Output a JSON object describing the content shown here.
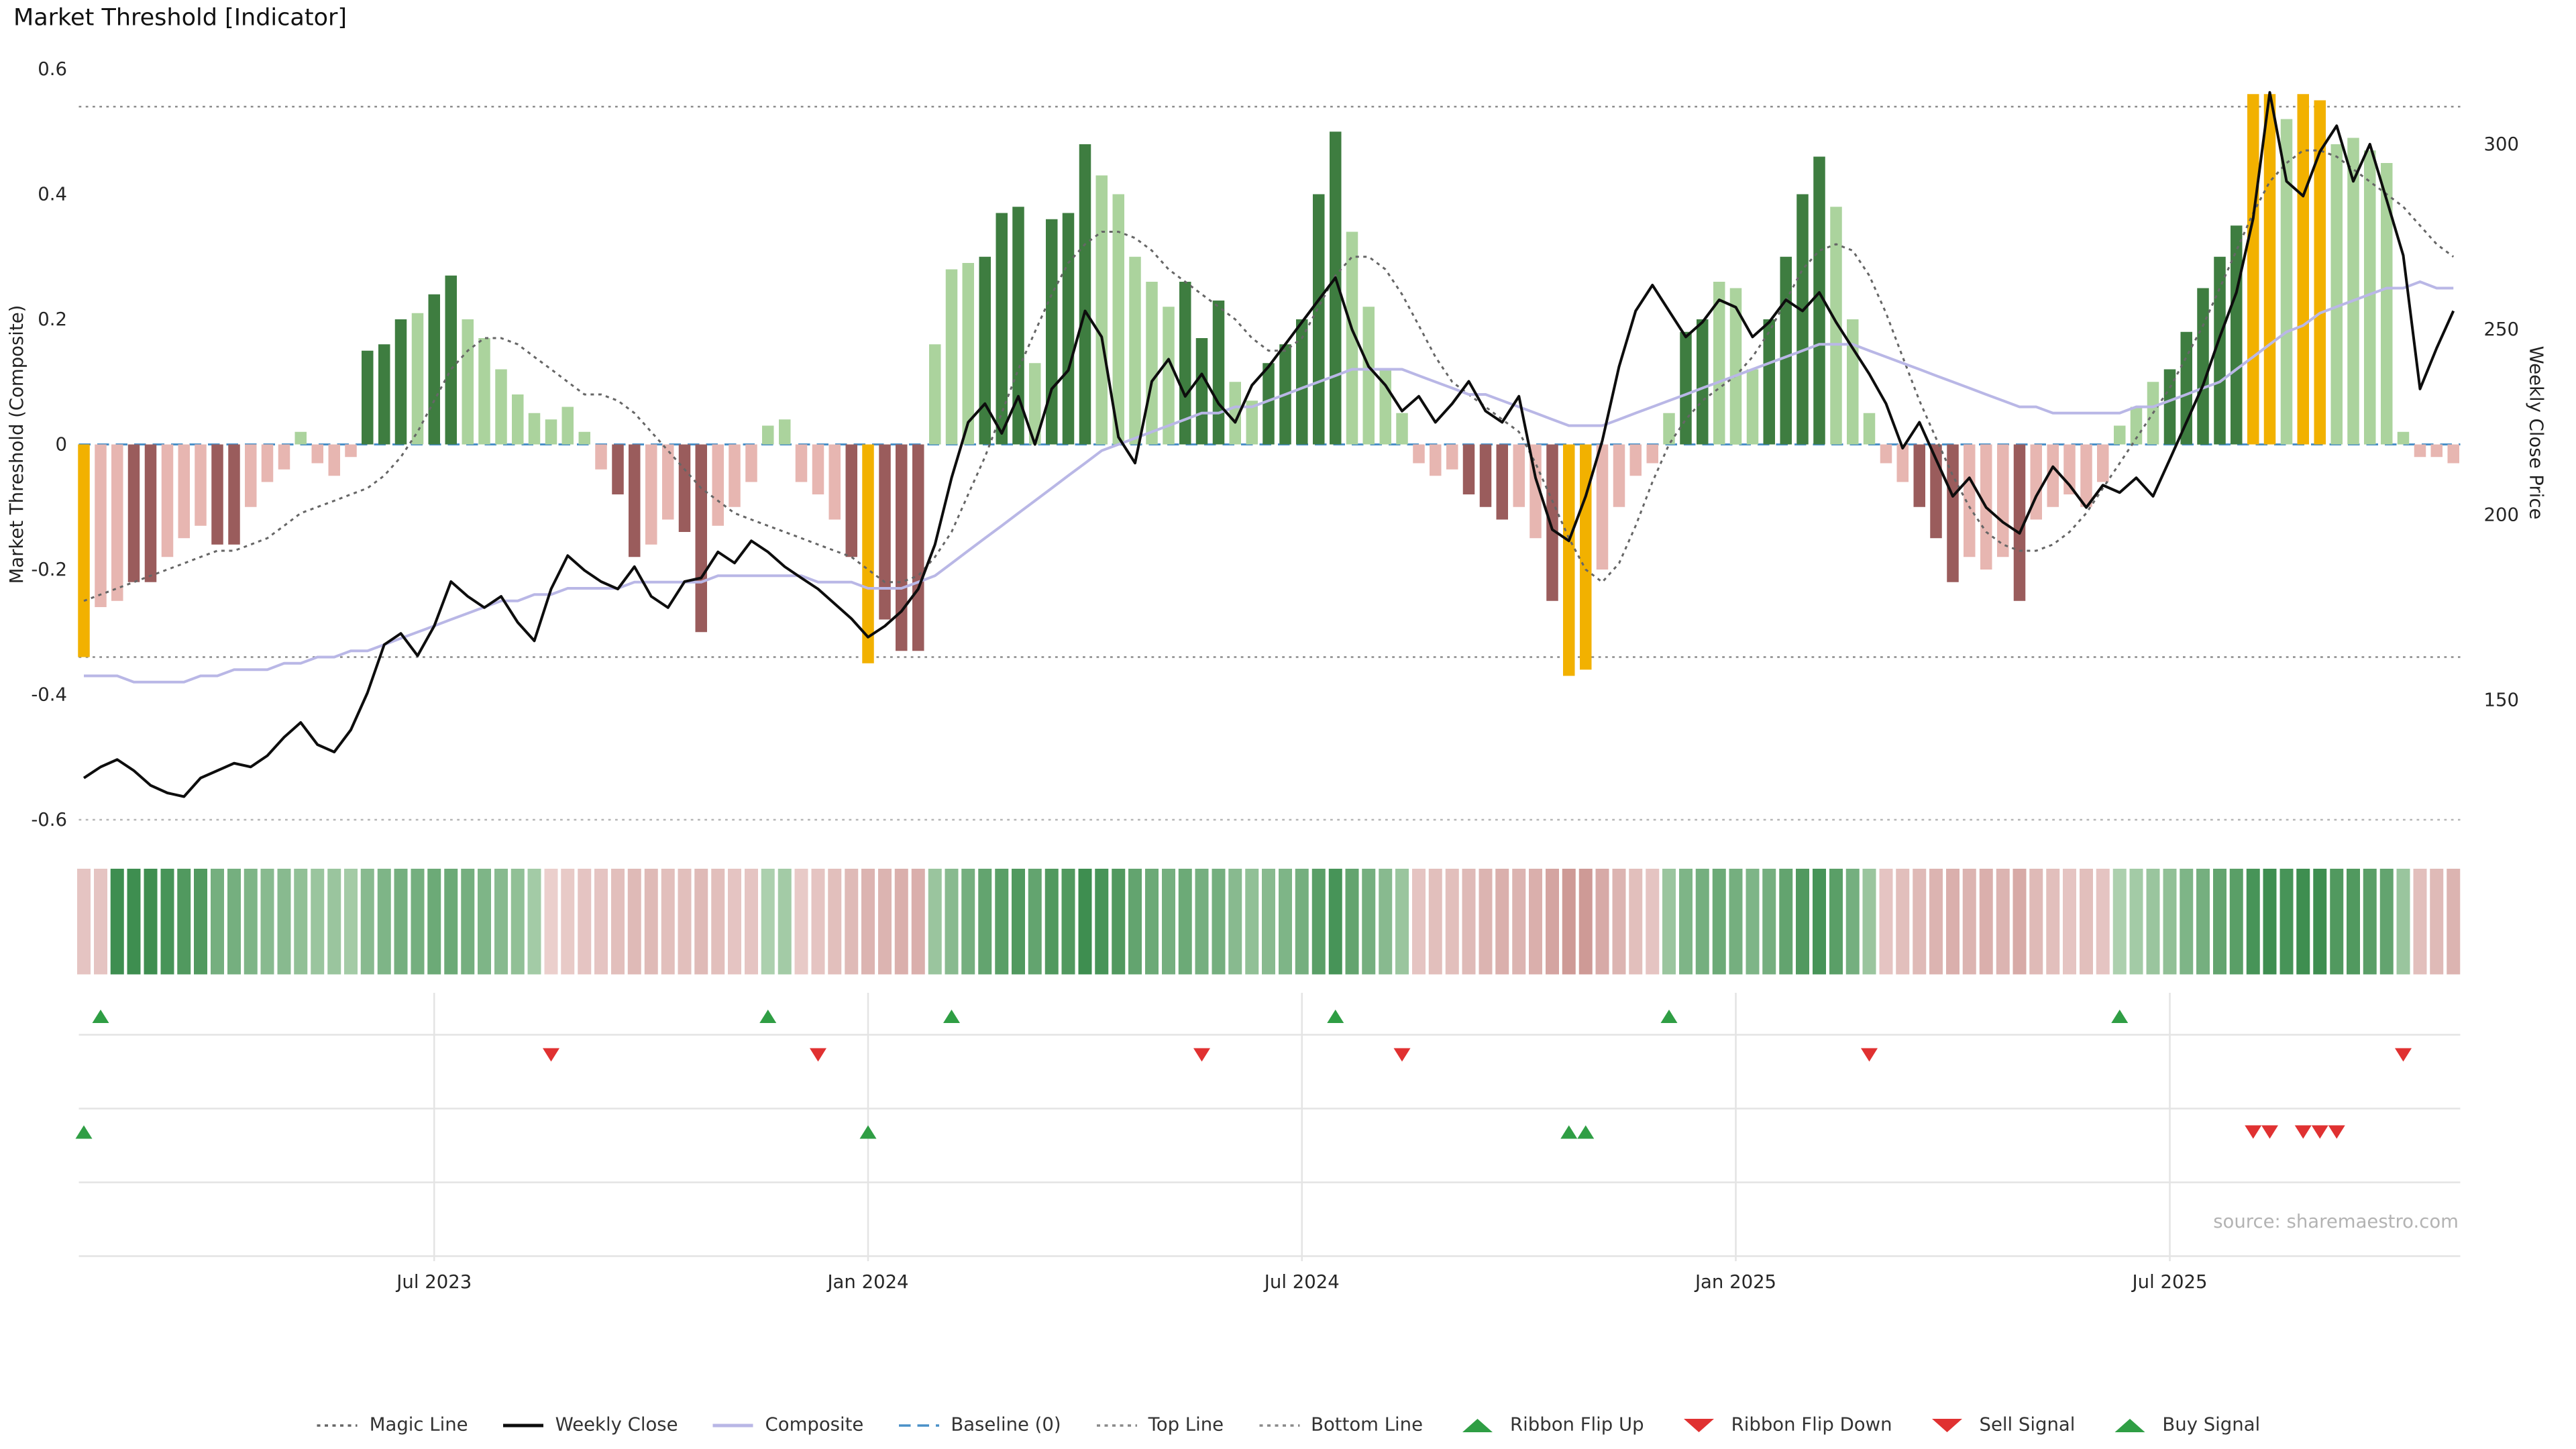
{
  "title": "Market Threshold [Indicator]",
  "source": "source: sharemaestro.com",
  "axes": {
    "left_label": "Market Threshold (Composite)",
    "right_label": "Weekly Close Price",
    "left_ticks": [
      "0.6",
      "0.4",
      "0.2",
      "0",
      "-0.2",
      "-0.4",
      "-0.6"
    ],
    "left_tick_values": [
      0.6,
      0.4,
      0.2,
      0,
      -0.2,
      -0.4,
      -0.6
    ],
    "right_ticks": [
      "300",
      "250",
      "200",
      "150"
    ],
    "right_tick_values": [
      300,
      250,
      200,
      150
    ],
    "x_ticks": [
      {
        "label": "Jul 2023",
        "week": 21
      },
      {
        "label": "Jan 2024",
        "week": 47
      },
      {
        "label": "Jul 2024",
        "week": 73
      },
      {
        "label": "Jan 2025",
        "week": 99
      },
      {
        "label": "Jul 2025",
        "week": 125
      }
    ]
  },
  "colors": {
    "bars": {
      "gold": "#f2b100",
      "dgreen": "#3e7d40",
      "lgreen": "#abd39d",
      "pink": "#e7b6b1",
      "dred": "#9a5c5c"
    },
    "weekly_close": "#0d0d0d",
    "composite_line": "#b9b7e6",
    "magic_line": "#666666",
    "baseline": "#4a90c8",
    "ref_line": "#8a8a8a",
    "signal_green": "#2f9e44",
    "signal_red": "#e03131",
    "ribbon_green_dark": "#2c8340",
    "ribbon_green_light": "#e3f1dd",
    "ribbon_red_dark": "#bc7a76",
    "ribbon_red_light": "#f7e4e2"
  },
  "legend": {
    "items": [
      {
        "label": "Magic Line",
        "marker": "dotted",
        "color": "#666666"
      },
      {
        "label": "Weekly Close",
        "marker": "solid",
        "color": "#0d0d0d"
      },
      {
        "label": "Composite",
        "marker": "solid",
        "color": "#b9b7e6"
      },
      {
        "label": "Baseline (0)",
        "marker": "dashed",
        "color": "#4a90c8"
      },
      {
        "label": "Top Line",
        "marker": "dotted",
        "color": "#8a8a8a"
      },
      {
        "label": "Bottom Line",
        "marker": "dotted",
        "color": "#8a8a8a"
      },
      {
        "label": "Ribbon Flip Up",
        "marker": "tri-up",
        "color": "#2f9e44"
      },
      {
        "label": "Ribbon Flip Down",
        "marker": "tri-down",
        "color": "#e03131"
      },
      {
        "label": "Sell Signal",
        "marker": "tri-down",
        "color": "#e03131"
      },
      {
        "label": "Buy Signal",
        "marker": "tri-up",
        "color": "#2f9e44"
      }
    ]
  },
  "chart_data": {
    "type": "bar",
    "subtype": "indicator-histogram-with-lines",
    "x_unit": "week",
    "n_weeks": 143,
    "ylim_left": [
      -0.6,
      0.6
    ],
    "top_line": 0.54,
    "bottom_line": -0.34,
    "baseline": 0,
    "bar_values": [
      -0.34,
      -0.26,
      -0.25,
      -0.22,
      -0.22,
      -0.18,
      -0.15,
      -0.13,
      -0.16,
      -0.16,
      -0.1,
      -0.06,
      -0.04,
      0.02,
      -0.03,
      -0.05,
      -0.02,
      0.15,
      0.16,
      0.2,
      0.21,
      0.24,
      0.27,
      0.2,
      0.17,
      0.12,
      0.08,
      0.05,
      0.04,
      0.06,
      0.02,
      -0.04,
      -0.08,
      -0.18,
      -0.16,
      -0.12,
      -0.14,
      -0.3,
      -0.13,
      -0.1,
      -0.06,
      0.03,
      0.04,
      -0.06,
      -0.08,
      -0.12,
      -0.18,
      -0.35,
      -0.28,
      -0.33,
      -0.33,
      0.16,
      0.28,
      0.29,
      0.3,
      0.37,
      0.38,
      0.13,
      0.36,
      0.37,
      0.48,
      0.43,
      0.4,
      0.3,
      0.26,
      0.22,
      0.26,
      0.17,
      0.23,
      0.1,
      0.07,
      0.13,
      0.16,
      0.2,
      0.4,
      0.5,
      0.34,
      0.22,
      0.12,
      0.05,
      -0.03,
      -0.05,
      -0.04,
      -0.08,
      -0.1,
      -0.12,
      -0.1,
      -0.15,
      -0.25,
      -0.37,
      -0.36,
      -0.2,
      -0.1,
      -0.05,
      -0.03,
      0.05,
      0.18,
      0.2,
      0.26,
      0.25,
      0.12,
      0.2,
      0.3,
      0.4,
      0.46,
      0.38,
      0.2,
      0.05,
      -0.03,
      -0.06,
      -0.1,
      -0.15,
      -0.22,
      -0.18,
      -0.2,
      -0.18,
      -0.25,
      -0.12,
      -0.1,
      -0.08,
      -0.1,
      -0.06,
      0.03,
      0.06,
      0.1,
      0.12,
      0.18,
      0.25,
      0.3,
      0.35,
      0.56,
      0.56,
      0.52,
      0.56,
      0.55,
      0.48,
      0.49,
      0.47,
      0.45,
      0.02,
      -0.02,
      -0.02,
      -0.03
    ],
    "bar_colors": [
      "gold",
      "pink",
      "pink",
      "dred",
      "dred",
      "pink",
      "pink",
      "pink",
      "dred",
      "dred",
      "pink",
      "pink",
      "pink",
      "lgreen",
      "pink",
      "pink",
      "pink",
      "dgreen",
      "dgreen",
      "dgreen",
      "lgreen",
      "dgreen",
      "dgreen",
      "lgreen",
      "lgreen",
      "lgreen",
      "lgreen",
      "lgreen",
      "lgreen",
      "lgreen",
      "lgreen",
      "pink",
      "dred",
      "dred",
      "pink",
      "pink",
      "dred",
      "dred",
      "pink",
      "pink",
      "pink",
      "lgreen",
      "lgreen",
      "pink",
      "pink",
      "pink",
      "dred",
      "gold",
      "dred",
      "dred",
      "dred",
      "lgreen",
      "lgreen",
      "lgreen",
      "dgreen",
      "dgreen",
      "dgreen",
      "lgreen",
      "dgreen",
      "dgreen",
      "dgreen",
      "lgreen",
      "lgreen",
      "lgreen",
      "lgreen",
      "lgreen",
      "dgreen",
      "dgreen",
      "dgreen",
      "lgreen",
      "lgreen",
      "dgreen",
      "dgreen",
      "dgreen",
      "dgreen",
      "dgreen",
      "lgreen",
      "lgreen",
      "lgreen",
      "lgreen",
      "pink",
      "pink",
      "pink",
      "dred",
      "dred",
      "dred",
      "pink",
      "pink",
      "dred",
      "gold",
      "gold",
      "pink",
      "pink",
      "pink",
      "pink",
      "lgreen",
      "dgreen",
      "dgreen",
      "lgreen",
      "lgreen",
      "lgreen",
      "dgreen",
      "dgreen",
      "dgreen",
      "dgreen",
      "lgreen",
      "lgreen",
      "lgreen",
      "pink",
      "pink",
      "dred",
      "dred",
      "dred",
      "pink",
      "pink",
      "pink",
      "dred",
      "pink",
      "pink",
      "pink",
      "pink",
      "pink",
      "lgreen",
      "lgreen",
      "lgreen",
      "dgreen",
      "dgreen",
      "dgreen",
      "dgreen",
      "dgreen",
      "gold",
      "gold",
      "lgreen",
      "gold",
      "gold",
      "lgreen",
      "lgreen",
      "lgreen",
      "lgreen",
      "lgreen",
      "pink",
      "pink",
      "pink"
    ],
    "series": {
      "weekly_close": [
        129,
        132,
        134,
        131,
        127,
        125,
        124,
        129,
        131,
        133,
        132,
        135,
        140,
        144,
        138,
        136,
        142,
        152,
        165,
        168,
        162,
        170,
        182,
        178,
        175,
        178,
        171,
        166,
        180,
        189,
        185,
        182,
        180,
        186,
        178,
        175,
        182,
        183,
        190,
        187,
        193,
        190,
        186,
        183,
        180,
        176,
        172,
        167,
        170,
        174,
        180,
        192,
        210,
        225,
        230,
        222,
        232,
        219,
        234,
        239,
        255,
        248,
        221,
        214,
        236,
        242,
        232,
        238,
        230,
        225,
        235,
        240,
        246,
        252,
        258,
        264,
        250,
        240,
        235,
        228,
        232,
        225,
        230,
        236,
        228,
        225,
        232,
        210,
        196,
        193,
        205,
        220,
        240,
        255,
        262,
        255,
        248,
        252,
        258,
        256,
        248,
        252,
        258,
        255,
        260,
        252,
        245,
        238,
        230,
        218,
        225,
        215,
        205,
        210,
        202,
        198,
        195,
        205,
        213,
        208,
        202,
        208,
        206,
        210,
        205,
        215,
        225,
        235,
        248,
        260,
        280,
        314,
        290,
        286,
        298,
        305,
        290,
        300,
        285,
        270,
        234,
        245,
        255
      ],
      "composite": [
        -0.37,
        -0.37,
        -0.37,
        -0.38,
        -0.38,
        -0.38,
        -0.38,
        -0.37,
        -0.37,
        -0.36,
        -0.36,
        -0.36,
        -0.35,
        -0.35,
        -0.34,
        -0.34,
        -0.33,
        -0.33,
        -0.32,
        -0.31,
        -0.3,
        -0.29,
        -0.28,
        -0.27,
        -0.26,
        -0.25,
        -0.25,
        -0.24,
        -0.24,
        -0.23,
        -0.23,
        -0.23,
        -0.23,
        -0.22,
        -0.22,
        -0.22,
        -0.22,
        -0.22,
        -0.21,
        -0.21,
        -0.21,
        -0.21,
        -0.21,
        -0.21,
        -0.22,
        -0.22,
        -0.22,
        -0.23,
        -0.23,
        -0.23,
        -0.22,
        -0.21,
        -0.19,
        -0.17,
        -0.15,
        -0.13,
        -0.11,
        -0.09,
        -0.07,
        -0.05,
        -0.03,
        -0.01,
        0.0,
        0.01,
        0.02,
        0.03,
        0.04,
        0.05,
        0.05,
        0.06,
        0.06,
        0.07,
        0.08,
        0.09,
        0.1,
        0.11,
        0.12,
        0.12,
        0.12,
        0.12,
        0.11,
        0.1,
        0.09,
        0.08,
        0.08,
        0.07,
        0.06,
        0.05,
        0.04,
        0.03,
        0.03,
        0.03,
        0.04,
        0.05,
        0.06,
        0.07,
        0.08,
        0.09,
        0.1,
        0.11,
        0.12,
        0.13,
        0.14,
        0.15,
        0.16,
        0.16,
        0.16,
        0.15,
        0.14,
        0.13,
        0.12,
        0.11,
        0.1,
        0.09,
        0.08,
        0.07,
        0.06,
        0.06,
        0.05,
        0.05,
        0.05,
        0.05,
        0.05,
        0.06,
        0.06,
        0.07,
        0.08,
        0.09,
        0.1,
        0.12,
        0.14,
        0.16,
        0.18,
        0.19,
        0.21,
        0.22,
        0.23,
        0.24,
        0.25,
        0.25,
        0.26,
        0.25,
        0.25
      ],
      "magic_line": [
        -0.25,
        -0.24,
        -0.23,
        -0.22,
        -0.21,
        -0.2,
        -0.19,
        -0.18,
        -0.17,
        -0.17,
        -0.16,
        -0.15,
        -0.13,
        -0.11,
        -0.1,
        -0.09,
        -0.08,
        -0.07,
        -0.05,
        -0.02,
        0.02,
        0.07,
        0.12,
        0.15,
        0.17,
        0.17,
        0.16,
        0.14,
        0.12,
        0.1,
        0.08,
        0.08,
        0.07,
        0.05,
        0.02,
        -0.01,
        -0.04,
        -0.07,
        -0.09,
        -0.11,
        -0.12,
        -0.13,
        -0.14,
        -0.15,
        -0.16,
        -0.17,
        -0.18,
        -0.2,
        -0.22,
        -0.22,
        -0.21,
        -0.18,
        -0.14,
        -0.08,
        -0.02,
        0.05,
        0.12,
        0.18,
        0.24,
        0.29,
        0.32,
        0.34,
        0.34,
        0.33,
        0.31,
        0.28,
        0.26,
        0.24,
        0.22,
        0.2,
        0.17,
        0.15,
        0.15,
        0.17,
        0.22,
        0.27,
        0.3,
        0.3,
        0.28,
        0.24,
        0.19,
        0.14,
        0.1,
        0.08,
        0.06,
        0.04,
        0.02,
        -0.03,
        -0.09,
        -0.15,
        -0.2,
        -0.22,
        -0.19,
        -0.13,
        -0.06,
        0.0,
        0.04,
        0.07,
        0.09,
        0.11,
        0.14,
        0.18,
        0.23,
        0.28,
        0.31,
        0.32,
        0.31,
        0.27,
        0.21,
        0.14,
        0.07,
        0.01,
        -0.05,
        -0.1,
        -0.14,
        -0.16,
        -0.17,
        -0.17,
        -0.16,
        -0.14,
        -0.11,
        -0.07,
        -0.03,
        0.01,
        0.05,
        0.09,
        0.14,
        0.19,
        0.25,
        0.31,
        0.37,
        0.42,
        0.45,
        0.47,
        0.47,
        0.46,
        0.44,
        0.42,
        0.4,
        0.38,
        0.35,
        0.32,
        0.3
      ]
    },
    "ribbon": [
      -0.3,
      -0.3,
      0.9,
      0.9,
      0.9,
      0.85,
      0.8,
      0.8,
      0.6,
      0.6,
      0.55,
      0.5,
      0.5,
      0.45,
      0.4,
      0.4,
      0.35,
      0.5,
      0.55,
      0.6,
      0.6,
      0.65,
      0.65,
      0.6,
      0.55,
      0.5,
      0.45,
      0.35,
      -0.2,
      -0.25,
      -0.3,
      -0.3,
      -0.35,
      -0.4,
      -0.4,
      -0.35,
      -0.35,
      -0.4,
      -0.35,
      -0.3,
      -0.3,
      0.3,
      0.35,
      -0.25,
      -0.3,
      -0.35,
      -0.4,
      -0.45,
      -0.45,
      -0.5,
      -0.5,
      0.4,
      0.5,
      0.6,
      0.7,
      0.75,
      0.8,
      0.7,
      0.8,
      0.8,
      0.9,
      0.85,
      0.8,
      0.7,
      0.65,
      0.6,
      0.65,
      0.6,
      0.6,
      0.5,
      0.45,
      0.5,
      0.55,
      0.6,
      0.75,
      0.85,
      0.7,
      0.6,
      0.5,
      0.4,
      -0.3,
      -0.35,
      -0.35,
      -0.4,
      -0.45,
      -0.5,
      -0.45,
      -0.5,
      -0.6,
      -0.7,
      -0.7,
      -0.55,
      -0.45,
      -0.35,
      -0.3,
      0.4,
      0.55,
      0.6,
      0.65,
      0.6,
      0.55,
      0.6,
      0.7,
      0.8,
      0.85,
      0.75,
      0.6,
      0.4,
      -0.3,
      -0.35,
      -0.4,
      -0.45,
      -0.5,
      -0.45,
      -0.5,
      -0.45,
      -0.55,
      -0.4,
      -0.35,
      -0.3,
      -0.35,
      -0.3,
      0.3,
      0.35,
      0.4,
      0.45,
      0.55,
      0.6,
      0.7,
      0.75,
      0.85,
      0.9,
      0.85,
      0.9,
      0.9,
      0.8,
      0.8,
      0.75,
      0.7,
      0.4,
      -0.35,
      -0.4,
      -0.45
    ],
    "signals": {
      "ribbon_flip_up_weeks": [
        1,
        41,
        52,
        75,
        95,
        122
      ],
      "ribbon_flip_down_weeks": [
        28,
        44,
        67,
        79,
        107,
        139
      ],
      "buy_signal_weeks": [
        0,
        47,
        89,
        90
      ],
      "sell_signal_weeks": [
        130,
        131,
        133,
        134,
        135
      ]
    }
  }
}
